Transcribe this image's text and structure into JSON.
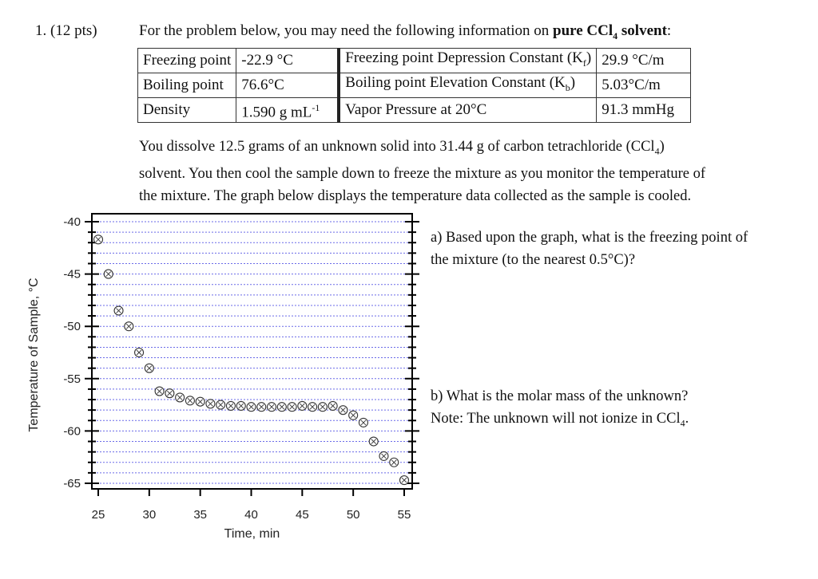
{
  "problem": {
    "number": "1.",
    "points": "(12 pts)",
    "intro_prefix": "For the problem below, you may need the following information on ",
    "intro_bold": "pure CCl",
    "intro_bold_sub": "4",
    "intro_bold_suffix": " solvent",
    "intro_end": ":"
  },
  "properties_table": {
    "rows": [
      {
        "label": "Freezing point",
        "value": "-22.9 °C",
        "label2": "Freezing point Depression Constant (K",
        "label2_sub": "f",
        "label2_end": ")",
        "value2": "29.9 °C/m"
      },
      {
        "label": "Boiling point",
        "value": "76.6°C",
        "label2": "Boiling point Elevation Constant (K",
        "label2_sub": "b",
        "label2_end": ")",
        "value2": "5.03°C/m"
      },
      {
        "label": "Density",
        "value": "1.590 g mL",
        "value_sup": "-1",
        "label2": "Vapor Pressure at 20°C",
        "label2_sub": "",
        "label2_end": "",
        "value2": "91.3 mmHg"
      }
    ]
  },
  "paragraph": {
    "line1_a": "You dissolve 12.5 grams of an unknown solid into 31.44 g of carbon tetrachloride (CCl",
    "line1_sub": "4",
    "line1_b": ")",
    "line2": "solvent. You then cool the sample down to freeze the mixture as you monitor the temperature of",
    "line3": "the mixture.   The graph below displays the temperature data collected as the sample is cooled."
  },
  "questions": {
    "a_line1": "a)  Based upon the graph, what is the freezing point of",
    "a_line2": "the mixture (to the nearest 0.5°C)?",
    "b_line1": "b)  What is the molar mass of the unknown?",
    "b_line2_a": "Note:  The unknown will not ionize in CCl",
    "b_line2_sub": "4",
    "b_line2_b": "."
  },
  "chart_data": {
    "type": "scatter",
    "title": "",
    "xlabel": "Time, min",
    "ylabel": "Temperature of Sample, °C",
    "xlim": [
      24.5,
      55.7
    ],
    "ylim": [
      -65.5,
      -39.3
    ],
    "x_ticks": [
      25,
      30,
      35,
      40,
      45,
      50,
      55
    ],
    "y_ticks": [
      -40,
      -45,
      -50,
      -55,
      -60,
      -65
    ],
    "grid": {
      "horizontal": true,
      "vertical": false,
      "spacing": 1,
      "style": "dotted",
      "color": "#6a6ae8"
    },
    "marker": "circle-x",
    "marker_color": "#333333",
    "legend": null,
    "series": [
      {
        "name": "Temperature",
        "x": [
          25,
          26,
          27,
          28,
          29,
          30,
          31,
          32,
          33,
          34,
          35,
          36,
          37,
          38,
          39,
          40,
          41,
          42,
          43,
          44,
          45,
          46,
          47,
          48,
          49,
          50,
          51,
          52,
          53,
          54,
          55
        ],
        "y": [
          -41.7,
          -45.0,
          -48.5,
          -50.0,
          -52.5,
          -54.0,
          -56.2,
          -56.4,
          -56.8,
          -57.1,
          -57.2,
          -57.4,
          -57.5,
          -57.6,
          -57.6,
          -57.7,
          -57.7,
          -57.7,
          -57.7,
          -57.7,
          -57.6,
          -57.7,
          -57.7,
          -57.6,
          -58.0,
          -58.5,
          -59.2,
          -61.0,
          -62.4,
          -63.0,
          -64.7
        ]
      }
    ]
  }
}
